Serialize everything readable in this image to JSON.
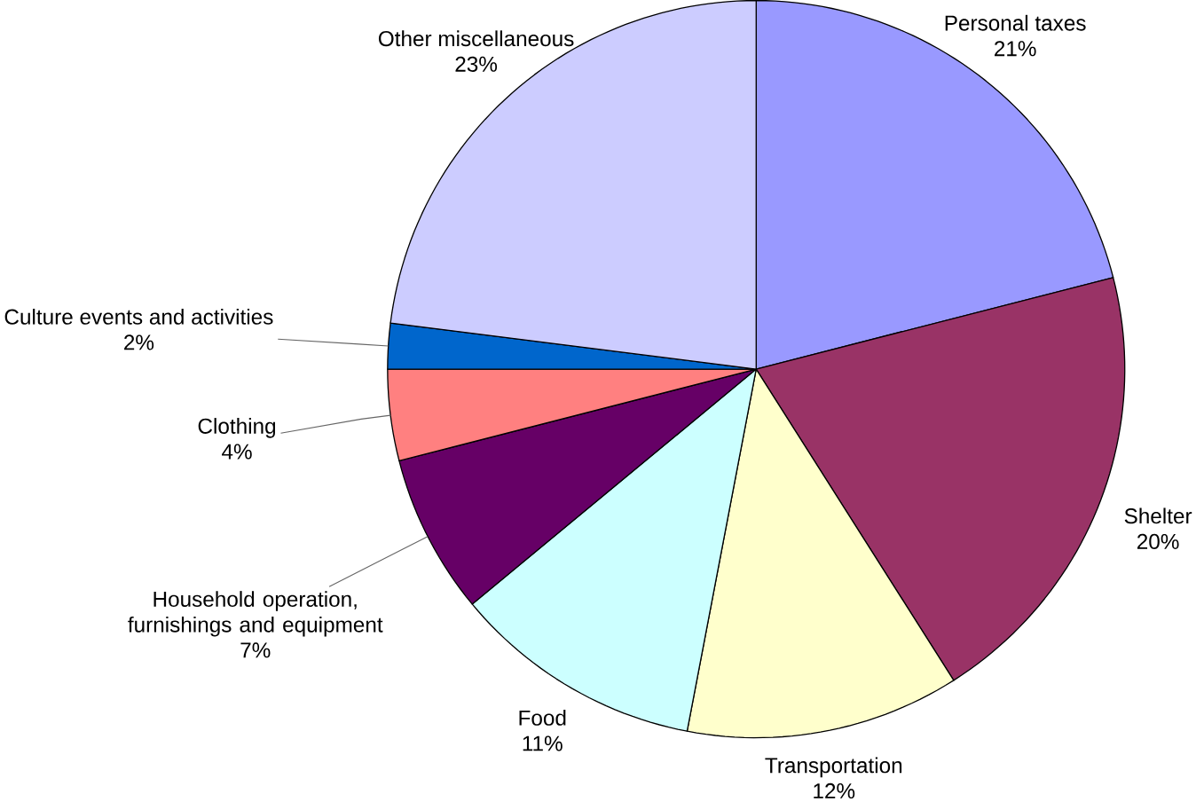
{
  "chart_data": {
    "type": "pie",
    "categories": [
      "Personal taxes",
      "Shelter",
      "Transportation",
      "Food",
      "Household operation, furnishings and equipment",
      "Clothing",
      "Culture events and activities",
      "Other miscellaneous"
    ],
    "values": [
      21,
      20,
      12,
      11,
      7,
      4,
      2,
      23
    ],
    "value_labels": [
      "21%",
      "20%",
      "12%",
      "11%",
      "7%",
      "4%",
      "2%",
      "23%"
    ],
    "colors": [
      "#9999ff",
      "#993366",
      "#ffffcc",
      "#ccffff",
      "#660066",
      "#ff8080",
      "#0066cc",
      "#ccccff"
    ]
  }
}
